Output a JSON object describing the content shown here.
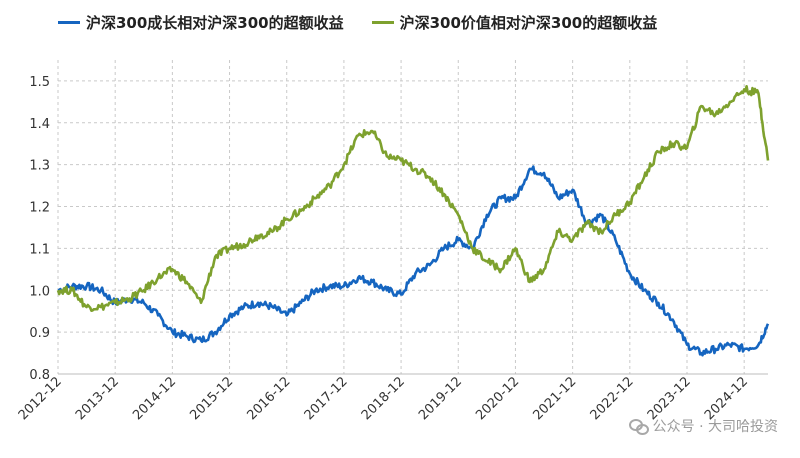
{
  "chart_data": {
    "type": "line",
    "title": "",
    "xlabel": "",
    "ylabel": "",
    "x_ticks": [
      "2012-12",
      "2013-12",
      "2014-12",
      "2015-12",
      "2016-12",
      "2017-12",
      "2018-12",
      "2019-12",
      "2020-12",
      "2021-12",
      "2022-12",
      "2023-12",
      "2024-12"
    ],
    "y_ticks": [
      "0.8",
      "0.9",
      "1.0",
      "1.1",
      "1.2",
      "1.3",
      "1.4",
      "1.5"
    ],
    "ylim": [
      0.8,
      1.55
    ],
    "grid": true,
    "legend_position": "top",
    "series": [
      {
        "name": "沪深300成长相对沪深300的超额收益",
        "color": "#1565c0",
        "points": [
          [
            "2012-12",
            1.0
          ],
          [
            "2013-03",
            1.01
          ],
          [
            "2013-06",
            1.01
          ],
          [
            "2013-09",
            1.0
          ],
          [
            "2013-12",
            0.97
          ],
          [
            "2014-03",
            0.98
          ],
          [
            "2014-06",
            0.97
          ],
          [
            "2014-09",
            0.94
          ],
          [
            "2014-12",
            0.9
          ],
          [
            "2015-03",
            0.89
          ],
          [
            "2015-06",
            0.88
          ],
          [
            "2015-09",
            0.9
          ],
          [
            "2015-12",
            0.94
          ],
          [
            "2016-03",
            0.96
          ],
          [
            "2016-06",
            0.97
          ],
          [
            "2016-09",
            0.96
          ],
          [
            "2016-12",
            0.94
          ],
          [
            "2017-03",
            0.97
          ],
          [
            "2017-06",
            1.0
          ],
          [
            "2017-09",
            1.01
          ],
          [
            "2017-12",
            1.01
          ],
          [
            "2018-03",
            1.03
          ],
          [
            "2018-06",
            1.02
          ],
          [
            "2018-09",
            1.0
          ],
          [
            "2018-12",
            0.99
          ],
          [
            "2019-03",
            1.04
          ],
          [
            "2019-06",
            1.06
          ],
          [
            "2019-09",
            1.1
          ],
          [
            "2019-12",
            1.12
          ],
          [
            "2020-03",
            1.1
          ],
          [
            "2020-06",
            1.18
          ],
          [
            "2020-09",
            1.22
          ],
          [
            "2020-12",
            1.22
          ],
          [
            "2021-03",
            1.29
          ],
          [
            "2021-06",
            1.28
          ],
          [
            "2021-09",
            1.22
          ],
          [
            "2021-12",
            1.24
          ],
          [
            "2022-03",
            1.16
          ],
          [
            "2022-06",
            1.18
          ],
          [
            "2022-09",
            1.12
          ],
          [
            "2022-12",
            1.04
          ],
          [
            "2023-03",
            1.0
          ],
          [
            "2023-06",
            0.97
          ],
          [
            "2023-09",
            0.93
          ],
          [
            "2023-12",
            0.87
          ],
          [
            "2024-03",
            0.85
          ],
          [
            "2024-06",
            0.86
          ],
          [
            "2024-09",
            0.87
          ],
          [
            "2024-12",
            0.86
          ],
          [
            "2025-03",
            0.87
          ],
          [
            "2025-05",
            0.92
          ]
        ]
      },
      {
        "name": "沪深300价值相对沪深300的超额收益",
        "color": "#7ea12e",
        "points": [
          [
            "2012-12",
            1.0
          ],
          [
            "2013-03",
            1.0
          ],
          [
            "2013-06",
            0.96
          ],
          [
            "2013-09",
            0.96
          ],
          [
            "2013-12",
            0.97
          ],
          [
            "2014-03",
            0.98
          ],
          [
            "2014-06",
            1.0
          ],
          [
            "2014-09",
            1.03
          ],
          [
            "2014-12",
            1.05
          ],
          [
            "2015-03",
            1.02
          ],
          [
            "2015-06",
            0.97
          ],
          [
            "2015-09",
            1.08
          ],
          [
            "2015-12",
            1.1
          ],
          [
            "2016-03",
            1.11
          ],
          [
            "2016-06",
            1.13
          ],
          [
            "2016-09",
            1.14
          ],
          [
            "2016-12",
            1.17
          ],
          [
            "2017-03",
            1.19
          ],
          [
            "2017-06",
            1.22
          ],
          [
            "2017-09",
            1.25
          ],
          [
            "2017-12",
            1.3
          ],
          [
            "2018-03",
            1.37
          ],
          [
            "2018-06",
            1.38
          ],
          [
            "2018-09",
            1.32
          ],
          [
            "2018-12",
            1.31
          ],
          [
            "2019-03",
            1.29
          ],
          [
            "2019-06",
            1.27
          ],
          [
            "2019-09",
            1.23
          ],
          [
            "2019-12",
            1.18
          ],
          [
            "2020-03",
            1.1
          ],
          [
            "2020-06",
            1.07
          ],
          [
            "2020-09",
            1.05
          ],
          [
            "2020-12",
            1.1
          ],
          [
            "2021-03",
            1.02
          ],
          [
            "2021-06",
            1.05
          ],
          [
            "2021-09",
            1.14
          ],
          [
            "2021-12",
            1.12
          ],
          [
            "2022-03",
            1.16
          ],
          [
            "2022-06",
            1.14
          ],
          [
            "2022-09",
            1.18
          ],
          [
            "2022-12",
            1.21
          ],
          [
            "2023-03",
            1.27
          ],
          [
            "2023-06",
            1.33
          ],
          [
            "2023-09",
            1.35
          ],
          [
            "2023-12",
            1.34
          ],
          [
            "2024-03",
            1.44
          ],
          [
            "2024-06",
            1.42
          ],
          [
            "2024-09",
            1.45
          ],
          [
            "2024-12",
            1.48
          ],
          [
            "2025-03",
            1.47
          ],
          [
            "2025-05",
            1.31
          ]
        ]
      }
    ]
  },
  "watermark": {
    "text": "公众号 · 大司哈投资",
    "icon": "wechat-icon"
  }
}
